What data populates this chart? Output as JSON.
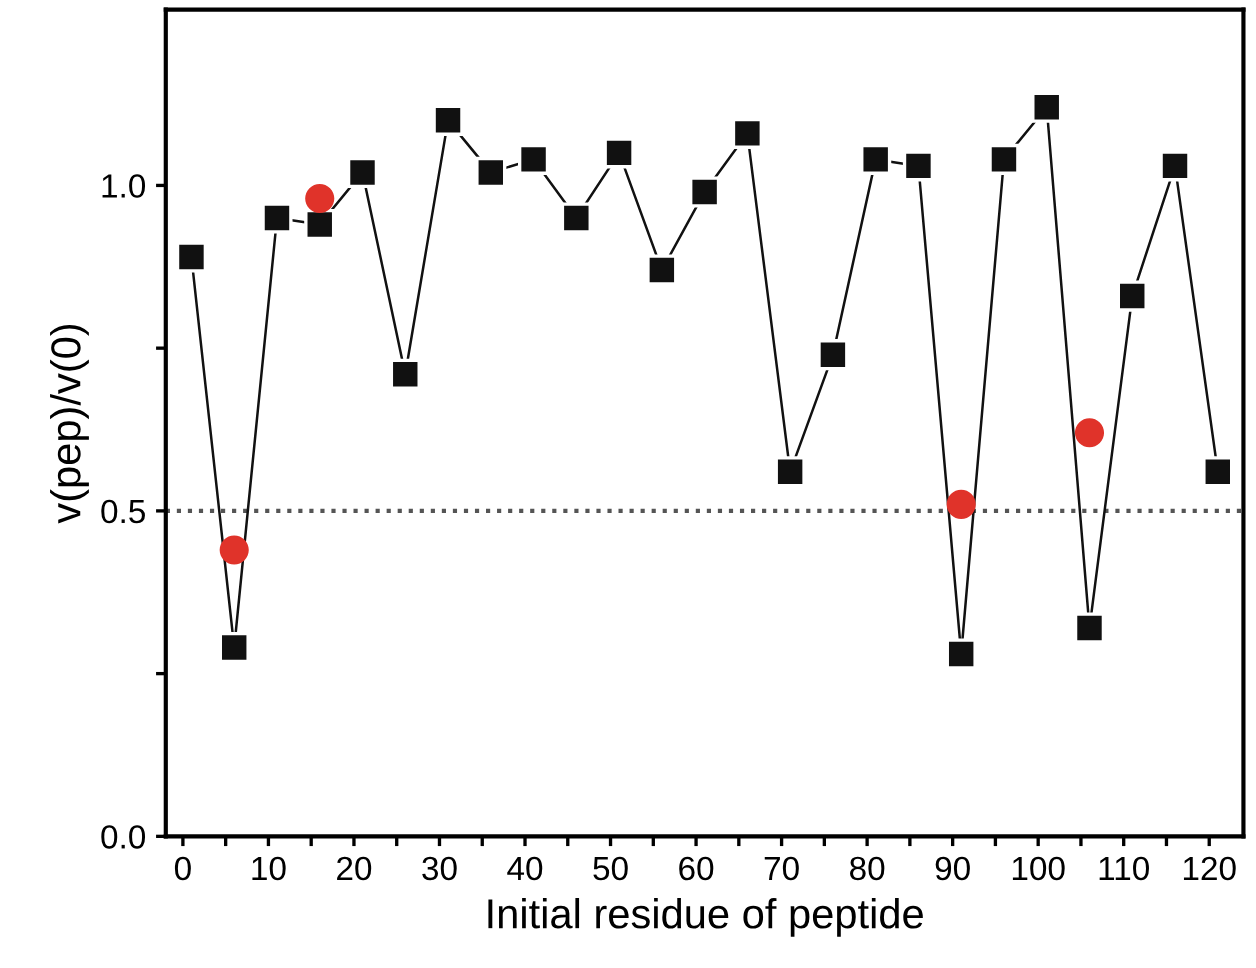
{
  "chart_data": {
    "type": "line",
    "xlabel": "Initial residue of peptide",
    "ylabel": "v(pep)/v(0)",
    "xlim": [
      -2,
      124
    ],
    "ylim": [
      0,
      1.27
    ],
    "xticks": [
      0,
      {
        "value": 5,
        "label": null
      },
      10,
      {
        "value": 15,
        "label": null
      },
      20,
      {
        "value": 25,
        "label": null
      },
      30,
      {
        "value": 35,
        "label": null
      },
      40,
      {
        "value": 45,
        "label": null
      },
      50,
      {
        "value": 55,
        "label": null
      },
      60,
      {
        "value": 65,
        "label": null
      },
      70,
      {
        "value": 75,
        "label": null
      },
      80,
      {
        "value": 85,
        "label": null
      },
      90,
      {
        "value": 95,
        "label": null
      },
      100,
      {
        "value": 105,
        "label": null
      },
      110,
      {
        "value": 115,
        "label": null
      },
      120
    ],
    "yticks": [
      {
        "value": 0,
        "label": "0.0"
      },
      {
        "value": 0.25,
        "label": null
      },
      {
        "value": 0.5,
        "label": "0.5"
      },
      {
        "value": 0.75,
        "label": null
      },
      {
        "value": 1.0,
        "label": "1.0"
      }
    ],
    "grid": false,
    "legend": false,
    "series": [
      {
        "color": "#111111",
        "marker": "square",
        "x": [
          1,
          6,
          11,
          16,
          21,
          26,
          31,
          36,
          41,
          46,
          51,
          56,
          61,
          66,
          71,
          76,
          81,
          86,
          91,
          96,
          101,
          106,
          111,
          116,
          121
        ],
        "values": [
          0.89,
          0.29,
          0.95,
          0.94,
          1.02,
          0.71,
          1.1,
          1.02,
          1.04,
          0.95,
          1.05,
          0.87,
          0.99,
          1.08,
          0.56,
          0.74,
          1.04,
          1.03,
          0.28,
          1.04,
          1.12,
          0.32,
          0.83,
          1.03,
          0.56
        ]
      },
      {
        "type": "scatter",
        "color": "#e0332a",
        "marker": "circle",
        "x": [
          6,
          16,
          91,
          106
        ],
        "values": [
          0.44,
          0.98,
          0.51,
          0.62
        ]
      }
    ],
    "ref_lines": [
      {
        "axis": "y",
        "value": 0.5,
        "color": "#555555",
        "line_style": "dotted"
      }
    ]
  }
}
